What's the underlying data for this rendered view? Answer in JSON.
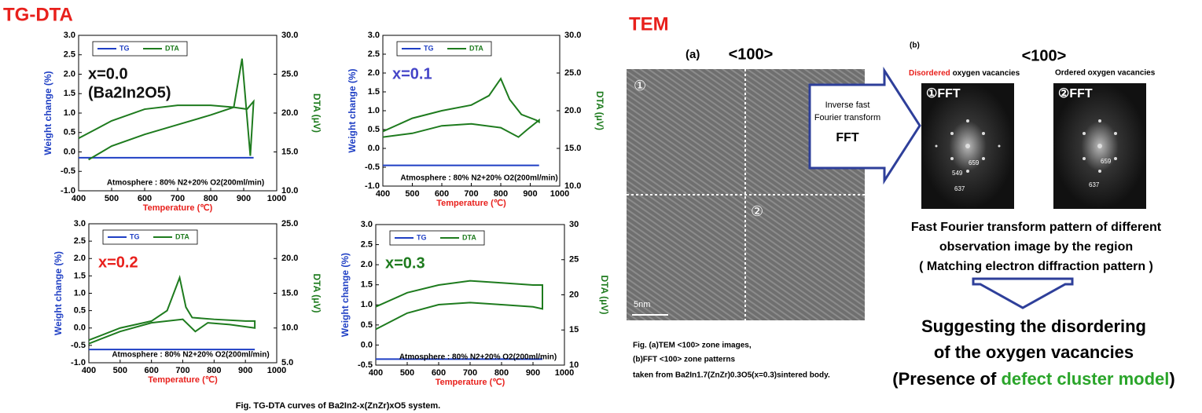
{
  "page": {
    "tg_title": "TG-DTA",
    "tg_caption": "Fig. TG-DTA curves of Ba2In2-x(ZnZr)xO5 system.",
    "tem_title": "TEM",
    "a_label": "(a)",
    "a_zone": "<100>",
    "b_label": "(b)",
    "b_zone": "<100>",
    "disordered": "Disordered",
    "disordered_rest": "oxygen vacancies",
    "ordered": "Ordered oxygen vacancies",
    "fft1": "①FFT",
    "fft2": "②FFT",
    "fft1_spots": [
      "659",
      "549",
      "637"
    ],
    "fft2_spots": [
      "659",
      "637"
    ],
    "region1": "①",
    "region2": "②",
    "scale": "5nm",
    "arrow_text": [
      "Inverse fast",
      "Fourier transform",
      "FFT"
    ],
    "fft_desc": [
      "Fast Fourier transform pattern of different",
      "observation image by the region",
      "( Matching electron diffraction pattern )"
    ],
    "tem_caption": [
      "Fig. (a)TEM <100> zone images,",
      " (b)FFT <100> zone patterns",
      "taken from Ba2In1.7(ZnZr)0.3O5(x=0.3)sintered body."
    ],
    "conclusion": [
      "Suggesting the disordering",
      "of the oxygen vacancies"
    ],
    "conclusion_last": [
      "(Presence of ",
      "defect cluster model",
      ")"
    ]
  },
  "chart_data": [
    {
      "type": "line",
      "xlabel": "Temperature (℃)",
      "ylabel": "Weight change (%)",
      "y2label": "DTA (μV)",
      "annotations": [
        {
          "text": "x=0.0",
          "color": "#111111"
        },
        {
          "text": "(Ba2In2O5)",
          "color": "#111111"
        }
      ],
      "note": "Atmosphere : 80% N2+20% O2(200ml/min)",
      "legend": "upper left",
      "xlim": [
        400,
        1000
      ],
      "xticks": [
        400,
        500,
        600,
        700,
        800,
        900,
        1000
      ],
      "ylim": [
        -1,
        3
      ],
      "yticks": [
        {
          "value": -1,
          "label": "-1.0"
        },
        {
          "value": -0.5,
          "label": "-0.5"
        },
        {
          "value": 0,
          "label": "0.0"
        },
        {
          "value": 0.5,
          "label": "0.5"
        },
        {
          "value": 1,
          "label": "1.0"
        },
        {
          "value": 1.5,
          "label": "1.5"
        },
        {
          "value": 2,
          "label": "2.0"
        },
        {
          "value": 2.5,
          "label": "2.5"
        },
        {
          "value": 3,
          "label": "3.0"
        }
      ],
      "y2lim": [
        10,
        30
      ],
      "y2ticks": [
        {
          "value": 10,
          "label": "10.0"
        },
        {
          "value": 15,
          "label": "15.0"
        },
        {
          "value": 20,
          "label": "20.0"
        },
        {
          "value": 25,
          "label": "25.0"
        },
        {
          "value": 30,
          "label": "30.0"
        }
      ],
      "series": [
        {
          "name": "TG",
          "color": "#1f3fc4",
          "x": [
            400,
            500,
            600,
            700,
            800,
            900,
            930
          ],
          "values": [
            -0.15,
            -0.15,
            -0.15,
            -0.15,
            -0.15,
            -0.15,
            -0.15
          ]
        },
        {
          "name": "DTA",
          "color": "#1e7b1e",
          "axis": "y2",
          "x": [
            430,
            500,
            600,
            700,
            800,
            870,
            895,
            910,
            920,
            930,
            910,
            870,
            800,
            700,
            600,
            500,
            400
          ],
          "values": [
            14,
            15.75,
            17.25,
            18.5,
            19.75,
            20.75,
            27,
            19.5,
            14.5,
            21.5,
            20.5,
            20.75,
            21,
            21,
            20.5,
            19,
            16.75
          ]
        }
      ]
    },
    {
      "type": "line",
      "xlabel": "Temperature (℃)",
      "ylabel": "Weight change (%)",
      "y2label": "DTA (μV)",
      "annotations": [
        {
          "text": "x=0.1",
          "color": "#4646c8"
        }
      ],
      "note": "Atmosphere : 80% N2+20% O2(200ml/min)",
      "legend": "upper left",
      "xlim": [
        400,
        1000
      ],
      "xticks": [
        400,
        500,
        600,
        700,
        800,
        900,
        1000
      ],
      "ylim": [
        -1,
        3
      ],
      "yticks": [
        {
          "value": -1,
          "label": "-1.0"
        },
        {
          "value": -0.5,
          "label": "-0.5"
        },
        {
          "value": 0,
          "label": "0.0"
        },
        {
          "value": 0.5,
          "label": "0.5"
        },
        {
          "value": 1,
          "label": "1.0"
        },
        {
          "value": 1.5,
          "label": "1.5"
        },
        {
          "value": 2,
          "label": "2.0"
        },
        {
          "value": 2.5,
          "label": "2.5"
        },
        {
          "value": 3,
          "label": "3.0"
        }
      ],
      "y2lim": [
        10,
        30
      ],
      "y2ticks": [
        {
          "value": 10,
          "label": "10.0"
        },
        {
          "value": 15,
          "label": "15.0"
        },
        {
          "value": 20,
          "label": "20.0"
        },
        {
          "value": 25,
          "label": "25.0"
        },
        {
          "value": 30,
          "label": "30.0"
        }
      ],
      "series": [
        {
          "name": "TG",
          "color": "#1f3fc4",
          "x": [
            400,
            500,
            600,
            700,
            800,
            900,
            930
          ],
          "values": [
            -0.45,
            -0.45,
            -0.45,
            -0.45,
            -0.45,
            -0.45,
            -0.45
          ]
        },
        {
          "name": "DTA",
          "color": "#1e7b1e",
          "axis": "y2",
          "x": [
            400,
            500,
            600,
            700,
            760,
            800,
            830,
            870,
            920,
            930,
            930,
            890,
            860,
            800,
            700,
            600,
            500,
            400
          ],
          "values": [
            17.25,
            19,
            20,
            20.75,
            22,
            24.25,
            21.5,
            19.5,
            18.75,
            18.5,
            18.75,
            17.5,
            16.5,
            17.75,
            18.25,
            18,
            17,
            16.5
          ]
        }
      ]
    },
    {
      "type": "line",
      "xlabel": "Temperature (℃)",
      "ylabel": "Weight change (%)",
      "y2label": "DTA (μV)",
      "annotations": [
        {
          "text": "x=0.2",
          "color": "#e8201c"
        }
      ],
      "note": "Atmosphere : 80% N2+20% O2(200ml/min)",
      "legend": "upper left",
      "xlim": [
        400,
        1000
      ],
      "xticks": [
        400,
        500,
        600,
        700,
        800,
        900,
        1000
      ],
      "ylim": [
        -1,
        3
      ],
      "yticks": [
        {
          "value": -1,
          "label": "-1.0"
        },
        {
          "value": -0.5,
          "label": "-0.5"
        },
        {
          "value": 0,
          "label": "0.0"
        },
        {
          "value": 0.5,
          "label": "0.5"
        },
        {
          "value": 1,
          "label": "1.0"
        },
        {
          "value": 1.5,
          "label": "1.5"
        },
        {
          "value": 2,
          "label": "2.0"
        },
        {
          "value": 2.5,
          "label": "2.5"
        },
        {
          "value": 3,
          "label": "3.0"
        }
      ],
      "y2lim": [
        5,
        25
      ],
      "y2ticks": [
        {
          "value": 5,
          "label": "5.0"
        },
        {
          "value": 10,
          "label": "10.0"
        },
        {
          "value": 15,
          "label": "15.0"
        },
        {
          "value": 20,
          "label": "20.0"
        },
        {
          "value": 25,
          "label": "25.0"
        }
      ],
      "series": [
        {
          "name": "TG",
          "color": "#1f3fc4",
          "x": [
            400,
            500,
            600,
            700,
            800,
            900,
            930
          ],
          "values": [
            -0.62,
            -0.62,
            -0.62,
            -0.62,
            -0.62,
            -0.62,
            -0.62
          ]
        },
        {
          "name": "DTA",
          "color": "#1e7b1e",
          "axis": "y2",
          "x": [
            400,
            500,
            600,
            650,
            690,
            710,
            730,
            800,
            900,
            930,
            930,
            850,
            780,
            740,
            700,
            600,
            500,
            400
          ],
          "values": [
            8.25,
            10,
            11,
            12.5,
            17.25,
            13,
            11.5,
            11.25,
            11,
            11,
            10,
            10.5,
            10.75,
            9.5,
            11.25,
            10.75,
            9.5,
            7.75
          ]
        }
      ]
    },
    {
      "type": "line",
      "xlabel": "Temperature (℃)",
      "ylabel": "Weight change (%)",
      "y2label": "DTA (μV)",
      "annotations": [
        {
          "text": "x=0.3",
          "color": "#1e7b1e"
        }
      ],
      "note": "Atmosphere : 80% N2+20% O2(200ml/min)",
      "legend": "upper left",
      "xlim": [
        400,
        1000
      ],
      "xticks": [
        400,
        500,
        600,
        700,
        800,
        900,
        1000
      ],
      "ylim": [
        -0.5,
        3
      ],
      "yticks": [
        {
          "value": -0.5,
          "label": "-0.5"
        },
        {
          "value": 0,
          "label": "0.0"
        },
        {
          "value": 0.5,
          "label": "0.5"
        },
        {
          "value": 1,
          "label": "1.0"
        },
        {
          "value": 1.5,
          "label": "1.5"
        },
        {
          "value": 2,
          "label": "2.0"
        },
        {
          "value": 2.5,
          "label": "2.5"
        },
        {
          "value": 3,
          "label": "3.0"
        }
      ],
      "y2lim": [
        10,
        30
      ],
      "y2ticks": [
        10,
        15,
        20,
        25,
        30
      ],
      "series": [
        {
          "name": "TG",
          "color": "#1f3fc4",
          "x": [
            400,
            500,
            600,
            700,
            800,
            900,
            930
          ],
          "values": [
            -0.35,
            -0.35,
            -0.35,
            -0.35,
            -0.35,
            -0.35,
            -0.35
          ]
        },
        {
          "name": "DTA",
          "color": "#1e7b1e",
          "axis": "y2",
          "x": [
            400,
            500,
            600,
            700,
            800,
            900,
            930,
            930,
            900,
            800,
            700,
            600,
            500,
            400
          ],
          "values": [
            18.3,
            20.3,
            21.4,
            22,
            21.7,
            21.4,
            21.4,
            18,
            18.3,
            18.6,
            18.9,
            18.6,
            17.4,
            15.1
          ]
        }
      ]
    }
  ]
}
